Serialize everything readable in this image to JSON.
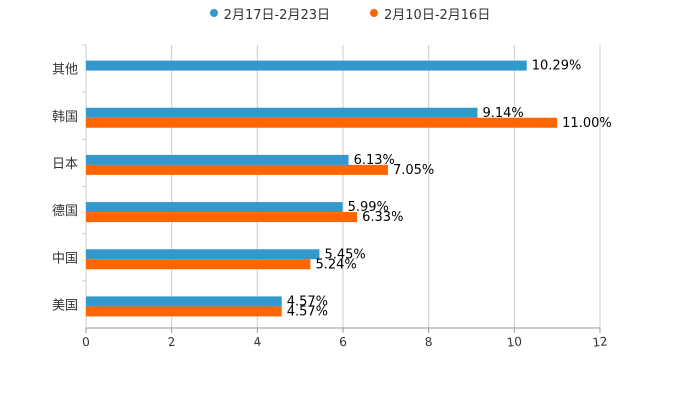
{
  "chart_data": {
    "type": "bar",
    "orientation": "horizontal",
    "categories": [
      "其他",
      "韩国",
      "日本",
      "德国",
      "中国",
      "美国"
    ],
    "series": [
      {
        "name": "2月17日-2月23日",
        "color": "#3399cc",
        "values": [
          10.29,
          9.14,
          6.13,
          5.99,
          5.45,
          4.57
        ],
        "labels": [
          "10.29%",
          "9.14%",
          "6.13%",
          "5.99%",
          "5.45%",
          "4.57%"
        ]
      },
      {
        "name": "2月10日-2月16日",
        "color": "#ff6600",
        "values": [
          null,
          11.0,
          7.05,
          6.33,
          5.24,
          4.57
        ],
        "labels": [
          "",
          "11.00%",
          "7.05%",
          "6.33%",
          "5.24%",
          "4.57%"
        ]
      }
    ],
    "xlim": [
      0,
      12
    ],
    "xticks": [
      "0",
      "2",
      "4",
      "6",
      "8",
      "10",
      "12"
    ],
    "xlabel": "",
    "ylabel": "",
    "grid": "vertical",
    "legend_position": "top-center"
  }
}
